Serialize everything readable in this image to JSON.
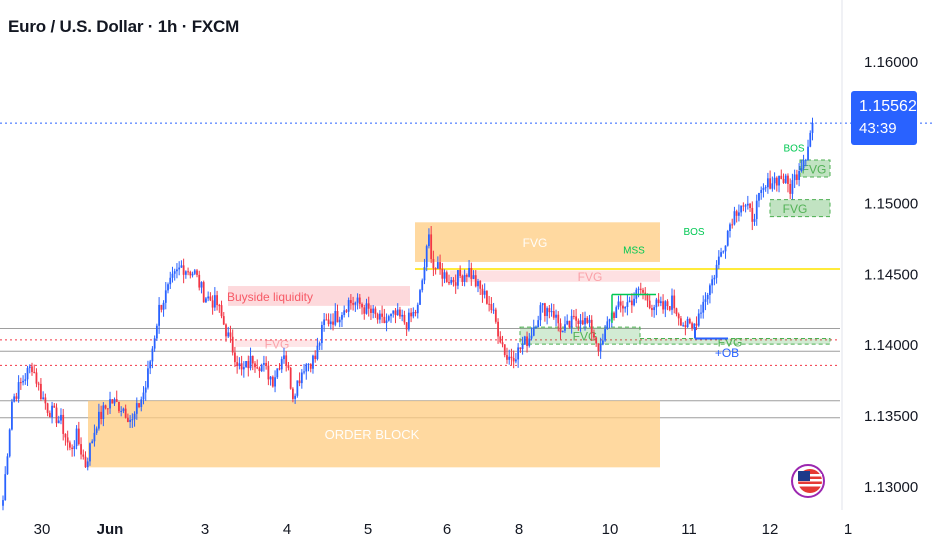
{
  "header": {
    "title": "Euro / U.S. Dollar · 1h · FXCM"
  },
  "price_label": {
    "price": "1.15562",
    "countdown": "43:39",
    "color": "#2962ff"
  },
  "chart_data": {
    "type": "candlestick",
    "title": "Euro / U.S. Dollar · 1h · FXCM",
    "y_ticks": [
      1.13,
      1.135,
      1.14,
      1.145,
      1.15,
      1.16
    ],
    "y_tick_labels": [
      "1.13000",
      "1.13500",
      "1.14000",
      "1.14500",
      "1.15000",
      "1.16000"
    ],
    "ylim": [
      1.1285,
      1.1638
    ],
    "x_tick_labels": [
      "30",
      "Jun",
      "3",
      "4",
      "5",
      "6",
      "8",
      "10",
      "11",
      "12",
      "1"
    ],
    "up_color": "#2962ff",
    "down_color": "#f23645",
    "last_price": 1.15562,
    "anchors": [
      [
        0,
        1.129
      ],
      [
        4,
        1.136
      ],
      [
        9,
        1.1375
      ],
      [
        13,
        1.1385
      ],
      [
        17,
        1.1365
      ],
      [
        20,
        1.1355
      ],
      [
        26,
        1.1345
      ],
      [
        30,
        1.1325
      ],
      [
        33,
        1.1335
      ],
      [
        37,
        1.1315
      ],
      [
        42,
        1.1345
      ],
      [
        48,
        1.136
      ],
      [
        54,
        1.1355
      ],
      [
        58,
        1.1345
      ],
      [
        64,
        1.137
      ],
      [
        70,
        1.1425
      ],
      [
        76,
        1.1445
      ],
      [
        80,
        1.1455
      ],
      [
        86,
        1.145
      ],
      [
        90,
        1.1435
      ],
      [
        96,
        1.1428
      ],
      [
        101,
        1.1405
      ],
      [
        107,
        1.138
      ],
      [
        112,
        1.139
      ],
      [
        116,
        1.1385
      ],
      [
        121,
        1.1375
      ],
      [
        126,
        1.1395
      ],
      [
        130,
        1.1365
      ],
      [
        135,
        1.1385
      ],
      [
        140,
        1.139
      ],
      [
        144,
        1.1415
      ],
      [
        150,
        1.142
      ],
      [
        155,
        1.143
      ],
      [
        160,
        1.1428
      ],
      [
        165,
        1.1422
      ],
      [
        170,
        1.1415
      ],
      [
        176,
        1.142
      ],
      [
        181,
        1.1415
      ],
      [
        186,
        1.1425
      ],
      [
        191,
        1.1475
      ],
      [
        193,
        1.1455
      ],
      [
        197,
        1.145
      ],
      [
        201,
        1.1445
      ],
      [
        205,
        1.1448
      ],
      [
        209,
        1.1452
      ],
      [
        213,
        1.144
      ],
      [
        218,
        1.143
      ],
      [
        222,
        1.141
      ],
      [
        226,
        1.139
      ],
      [
        231,
        1.1395
      ],
      [
        236,
        1.1405
      ],
      [
        241,
        1.1425
      ],
      [
        246,
        1.1425
      ],
      [
        251,
        1.1408
      ],
      [
        255,
        1.1415
      ],
      [
        259,
        1.142
      ],
      [
        264,
        1.141
      ],
      [
        268,
        1.1395
      ],
      [
        272,
        1.142
      ],
      [
        276,
        1.1425
      ],
      [
        281,
        1.143
      ],
      [
        286,
        1.1438
      ],
      [
        291,
        1.1428
      ],
      [
        296,
        1.1425
      ],
      [
        300,
        1.143
      ],
      [
        305,
        1.1415
      ],
      [
        309,
        1.141
      ],
      [
        314,
        1.143
      ],
      [
        318,
        1.1445
      ],
      [
        322,
        1.1465
      ],
      [
        327,
        1.149
      ],
      [
        331,
        1.15
      ],
      [
        336,
        1.149
      ],
      [
        340,
        1.1505
      ],
      [
        344,
        1.1515
      ],
      [
        349,
        1.1518
      ],
      [
        353,
        1.151
      ],
      [
        357,
        1.1525
      ],
      [
        360,
        1.1535
      ],
      [
        363,
        1.15562
      ]
    ],
    "zones": [
      {
        "kind": "fvg",
        "label": "FVG",
        "color": "#ffcc80"
      },
      {
        "kind": "order-block",
        "label": "ORDER BLOCK",
        "color": "#ffcc80"
      },
      {
        "kind": "liquidity",
        "label": "Buyside liquidity",
        "color": "#f7525f"
      },
      {
        "kind": "fvg-bear",
        "label": "FVG",
        "color": "#f7525f"
      },
      {
        "kind": "fvg-bear-2",
        "label": "FVG",
        "color": "#f7525f"
      },
      {
        "kind": "fvg-bull-1",
        "label": "FVG",
        "color": "#4caf50"
      },
      {
        "kind": "fvg-bull-2",
        "label": "FVG",
        "color": "#4caf50"
      },
      {
        "kind": "fvg-bull-3",
        "label": "FVG",
        "color": "#4caf50"
      },
      {
        "kind": "fvg-bull-4",
        "label": "FVG",
        "color": "#4caf50"
      }
    ],
    "annotations": [
      {
        "kind": "mss",
        "text": "MSS",
        "color": "#00c853"
      },
      {
        "kind": "bos-1",
        "text": "BOS",
        "color": "#00c853"
      },
      {
        "kind": "bos-2",
        "text": "BOS",
        "color": "#00c853"
      },
      {
        "kind": "ob",
        "text": "+OB",
        "color": "#2962ff"
      }
    ],
    "levels": [
      {
        "price": 1.1556,
        "style": "dotted",
        "color": "#2962ff"
      },
      {
        "price": 1.1453,
        "style": "solid",
        "color": "#ffeb3b"
      },
      {
        "price": 1.1411,
        "style": "solid",
        "color": "#9e9e9e"
      },
      {
        "price": 1.1403,
        "style": "dotted",
        "color": "#f23645"
      },
      {
        "price": 1.1395,
        "style": "solid",
        "color": "#9e9e9e"
      },
      {
        "price": 1.1385,
        "style": "dotted",
        "color": "#f23645"
      },
      {
        "price": 1.136,
        "style": "solid",
        "color": "#9e9e9e"
      },
      {
        "price": 1.1348,
        "style": "solid",
        "color": "#9e9e9e"
      }
    ]
  }
}
